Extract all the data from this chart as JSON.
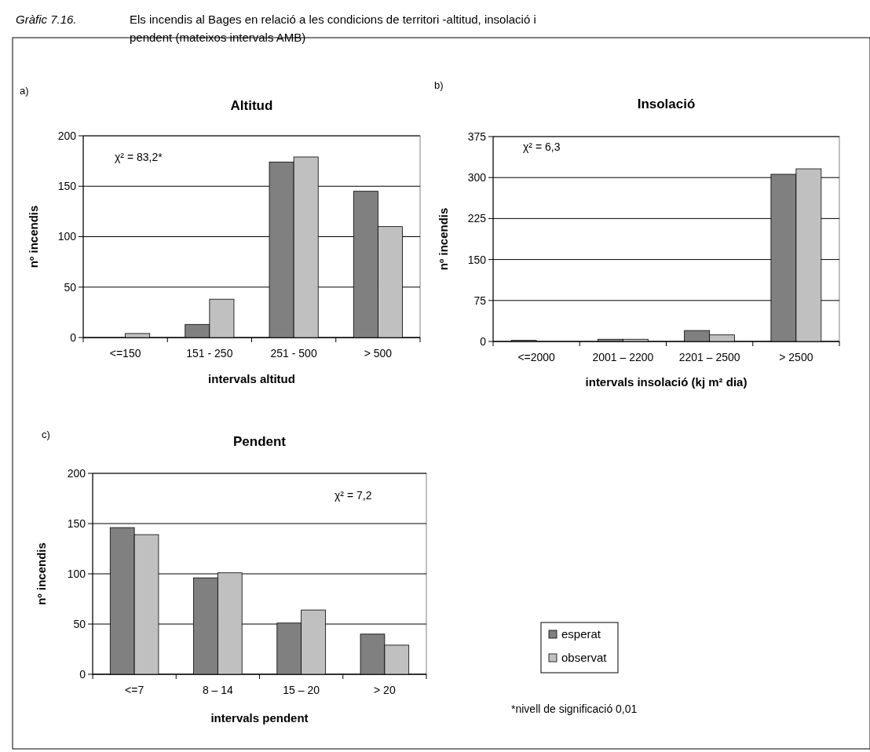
{
  "chart_data": [
    {
      "type": "bar",
      "title": "Altitud",
      "xlabel": "intervals  altitud",
      "ylabel": "nº incendis",
      "categories": [
        "<=150",
        "151 - 250",
        "251 - 500",
        "> 500"
      ],
      "series": [
        {
          "color": "#808080",
          "values": [
            0,
            13,
            174,
            145
          ]
        },
        {
          "color": "#c0c0c0",
          "values": [
            4,
            38,
            179,
            110
          ]
        }
      ],
      "ylim": [
        0,
        200
      ],
      "yticks": [
        0,
        50,
        100,
        150,
        200
      ],
      "grid": "y",
      "annotations": [
        "Gràfic 7.16.",
        "Els incendis al Bages en relació a les condicions de territori -altitud, insolació i pendent (mateixos intervals AMB)",
        "a)",
        "χ² = 83,2*"
      ]
    },
    {
      "type": "bar",
      "title": "Insolació",
      "xlabel": "intervals  insolació  (kj m² dia)",
      "ylabel": "nº incendis",
      "categories": [
        "<=2000",
        "2001  –  2200",
        "2201  –  2500",
        ">  2500"
      ],
      "series": [
        {
          "color": "#808080",
          "values": [
            2,
            4,
            20,
            306
          ]
        },
        {
          "color": "#c0c0c0",
          "values": [
            0,
            4,
            12,
            316
          ]
        }
      ],
      "ylim": [
        0,
        375
      ],
      "yticks": [
        0,
        75,
        150,
        225,
        300,
        375
      ],
      "grid": "y",
      "annotations": [
        "b)",
        "χ² = 6,3"
      ]
    },
    {
      "type": "bar",
      "title": "Pendent",
      "xlabel": "intervals  pendent",
      "ylabel": "nº incendis",
      "categories": [
        "<=7",
        "8 – 14",
        "15  – 20",
        "> 20"
      ],
      "series": [
        {
          "name": "esperat",
          "color": "#808080",
          "values": [
            146,
            96,
            51,
            40
          ]
        },
        {
          "name": "observat",
          "color": "#c0c0c0",
          "values": [
            139,
            101,
            64,
            29
          ]
        }
      ],
      "ylim": [
        0,
        200
      ],
      "yticks": [
        0,
        50,
        100,
        150,
        200
      ],
      "grid": "y",
      "legend": "right",
      "annotations": [
        "c)",
        "χ² = 7,2",
        "*nivell de significació 0,01"
      ]
    }
  ]
}
